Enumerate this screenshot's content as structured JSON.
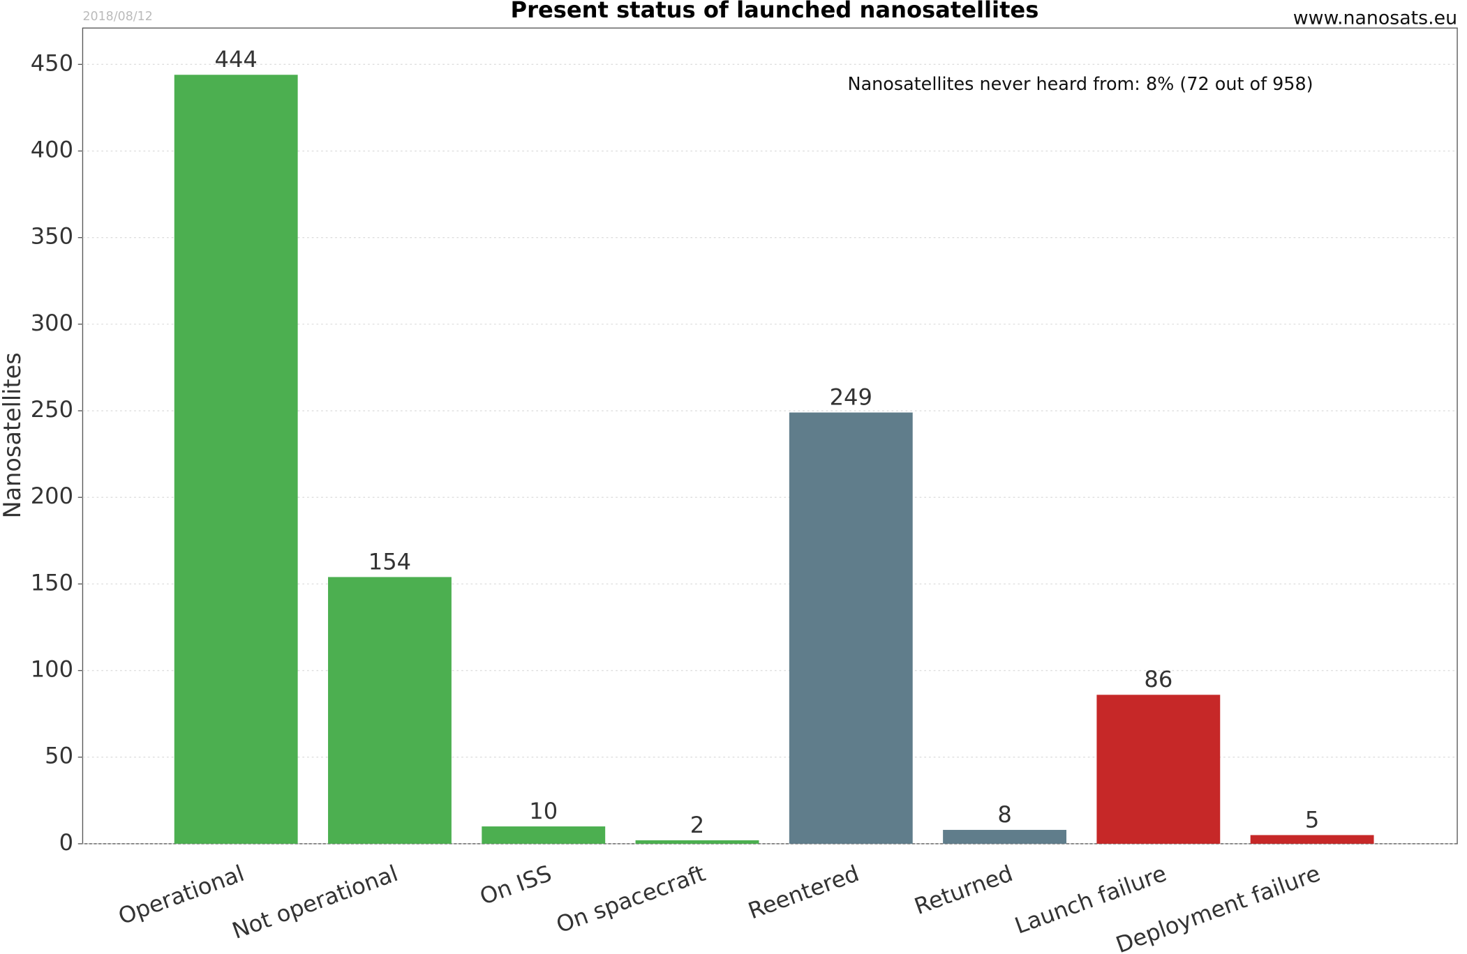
{
  "chart_data": {
    "type": "bar",
    "title": "Present status of launched nanosatellites",
    "date": "2018/08/12",
    "source": "www.nanosats.eu",
    "annotation": "Nanosatellites never heard from: 8% (72 out of 958)",
    "ylabel": "Nanosatellites",
    "categories": [
      "Operational",
      "Not operational",
      "On ISS",
      "On spacecraft",
      "Reentered",
      "Returned",
      "Launch failure",
      "Deployment failure"
    ],
    "values": [
      444,
      154,
      10,
      2,
      249,
      8,
      86,
      5
    ],
    "colors": [
      "#4caf50",
      "#4caf50",
      "#4caf50",
      "#4caf50",
      "#607d8b",
      "#607d8b",
      "#c62828",
      "#c62828"
    ],
    "ylim": [
      0,
      471
    ],
    "yticks": [
      0,
      50,
      100,
      150,
      200,
      250,
      300,
      350,
      400,
      450
    ],
    "grid": true
  }
}
